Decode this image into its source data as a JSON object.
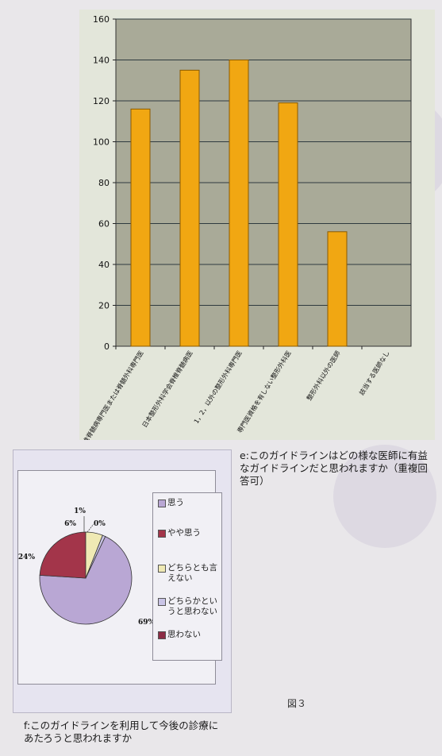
{
  "chart_data": [
    {
      "type": "bar",
      "categories": [
        "脊椎脊髄病専門医または脊髄外科専門医",
        "日本整形外科学会脊椎脊髄病医",
        "1，2，以外の整形外科専門医",
        "専門医資格を有しない整形外科医",
        "整形外科以外の医師",
        "該当する医師なし"
      ],
      "values": [
        116,
        135,
        140,
        119,
        56,
        0
      ],
      "ylim": [
        0,
        160
      ],
      "yticks": [
        0,
        20,
        40,
        60,
        80,
        100,
        120,
        140,
        160
      ],
      "grid": true,
      "colors": {
        "bar": "#f1a712",
        "bar_edge": "#8a5a00",
        "plot_bg": "#a9aa98",
        "grid": "#2e3a3f"
      }
    },
    {
      "type": "pie",
      "labels": [
        "思う",
        "やや思う",
        "どちらとも言えない",
        "どちらかというと思わない",
        "思わない"
      ],
      "values": [
        69,
        24,
        6,
        1,
        0
      ],
      "value_labels": [
        "69%",
        "24%",
        "6%",
        "1%",
        "0%"
      ],
      "legend": [
        "思う",
        "やや思う",
        "どちらとも言\nえない",
        "どちらかとい\nうと思わない",
        "思わない"
      ],
      "legend_position": "right",
      "colors": [
        "#b9a7d4",
        "#a3354a",
        "#efe9b4",
        "#c9c4e6",
        "#8c2c45"
      ]
    }
  ],
  "captions": {
    "e": "e:このガイドラインはどの様な医師に有益なガイドラインだと思われますか（重複回答可）",
    "f": "f:このガイドラインを利用して今後の診療にあたろうと思われますか",
    "figure": "図３"
  }
}
